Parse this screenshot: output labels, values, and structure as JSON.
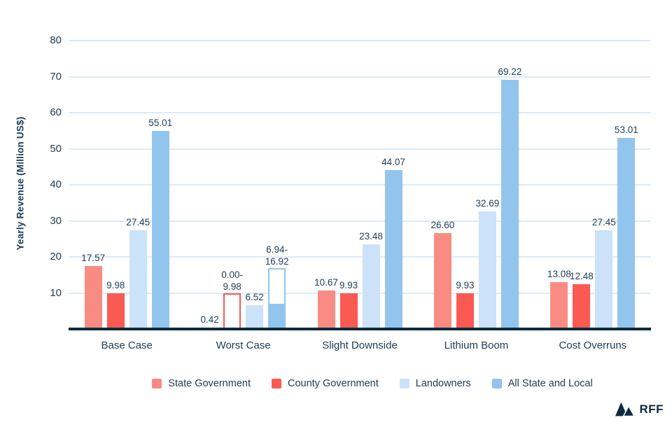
{
  "brand": {
    "text": "RFF"
  },
  "colors": {
    "text_navy": "#1d3c55",
    "axis_navy": "#0c2b40",
    "gridline": "#ddeaf7",
    "background": "#ffffff"
  },
  "chart_data": {
    "type": "bar",
    "title": "",
    "xlabel": "",
    "ylabel": "Yearly Revenue (Million US$)",
    "ylim": [
      0,
      80
    ],
    "yticks": [
      10,
      20,
      30,
      40,
      50,
      60,
      70,
      80
    ],
    "grid": true,
    "legend_position": "bottom",
    "categories": [
      "Base Case",
      "Worst Case",
      "Slight Downside",
      "Lithium Boom",
      "Cost Overruns"
    ],
    "series": [
      {
        "name": "State Government",
        "color": "#f98c82",
        "values": [
          17.57,
          0.42,
          10.67,
          26.6,
          13.08
        ]
      },
      {
        "name": "County Government",
        "color": "#fb5a53",
        "values": [
          9.98,
          9.98,
          9.93,
          9.93,
          12.48
        ]
      },
      {
        "name": "Landowners",
        "color": "#cbe2f8",
        "values": [
          27.45,
          6.52,
          23.48,
          32.69,
          27.45
        ]
      },
      {
        "name": "All State and Local",
        "color": "#92c5ed",
        "values": [
          55.01,
          16.92,
          44.07,
          69.22,
          53.01
        ]
      }
    ],
    "groups": [
      {
        "category": "Base Case",
        "bars": [
          {
            "series": "State Government",
            "value": 17.57,
            "label": "17.57",
            "style": "solid"
          },
          {
            "series": "County Government",
            "value": 9.98,
            "label": "9.98",
            "style": "solid"
          },
          {
            "series": "Landowners",
            "value": 27.45,
            "label": "27.45",
            "style": "solid"
          },
          {
            "series": "All State and Local",
            "value": 55.01,
            "label": "55.01",
            "style": "solid"
          }
        ]
      },
      {
        "category": "Worst Case",
        "bars": [
          {
            "series": "State Government",
            "value": 0.42,
            "label": "0.42",
            "style": "solid"
          },
          {
            "series": "County Government",
            "value": 9.98,
            "label": "0.00-\n9.98",
            "style": "outline",
            "range": [
              0.0,
              9.98
            ]
          },
          {
            "series": "Landowners",
            "value": 6.52,
            "label": "6.52",
            "style": "solid"
          },
          {
            "series": "All State and Local",
            "value": 16.92,
            "label": "6.94-\n16.92",
            "style": "outline",
            "fill_to": 6.94,
            "range": [
              6.94,
              16.92
            ]
          }
        ]
      },
      {
        "category": "Slight Downside",
        "bars": [
          {
            "series": "State Government",
            "value": 10.67,
            "label": "10.67",
            "style": "solid"
          },
          {
            "series": "County Government",
            "value": 9.93,
            "label": "9.93",
            "style": "solid"
          },
          {
            "series": "Landowners",
            "value": 23.48,
            "label": "23.48",
            "style": "solid"
          },
          {
            "series": "All State and Local",
            "value": 44.07,
            "label": "44.07",
            "style": "solid"
          }
        ]
      },
      {
        "category": "Lithium Boom",
        "bars": [
          {
            "series": "State Government",
            "value": 26.6,
            "label": "26.60",
            "style": "solid"
          },
          {
            "series": "County Government",
            "value": 9.93,
            "label": "9.93",
            "style": "solid"
          },
          {
            "series": "Landowners",
            "value": 32.69,
            "label": "32.69",
            "style": "solid"
          },
          {
            "series": "All State and Local",
            "value": 69.22,
            "label": "69.22",
            "style": "solid"
          }
        ]
      },
      {
        "category": "Cost Overruns",
        "bars": [
          {
            "series": "State Government",
            "value": 13.08,
            "label": "13.08",
            "style": "solid"
          },
          {
            "series": "County Government",
            "value": 12.48,
            "label": "12.48",
            "style": "solid"
          },
          {
            "series": "Landowners",
            "value": 27.45,
            "label": "27.45",
            "style": "solid"
          },
          {
            "series": "All State and Local",
            "value": 53.01,
            "label": "53.01",
            "style": "solid"
          }
        ]
      }
    ]
  }
}
